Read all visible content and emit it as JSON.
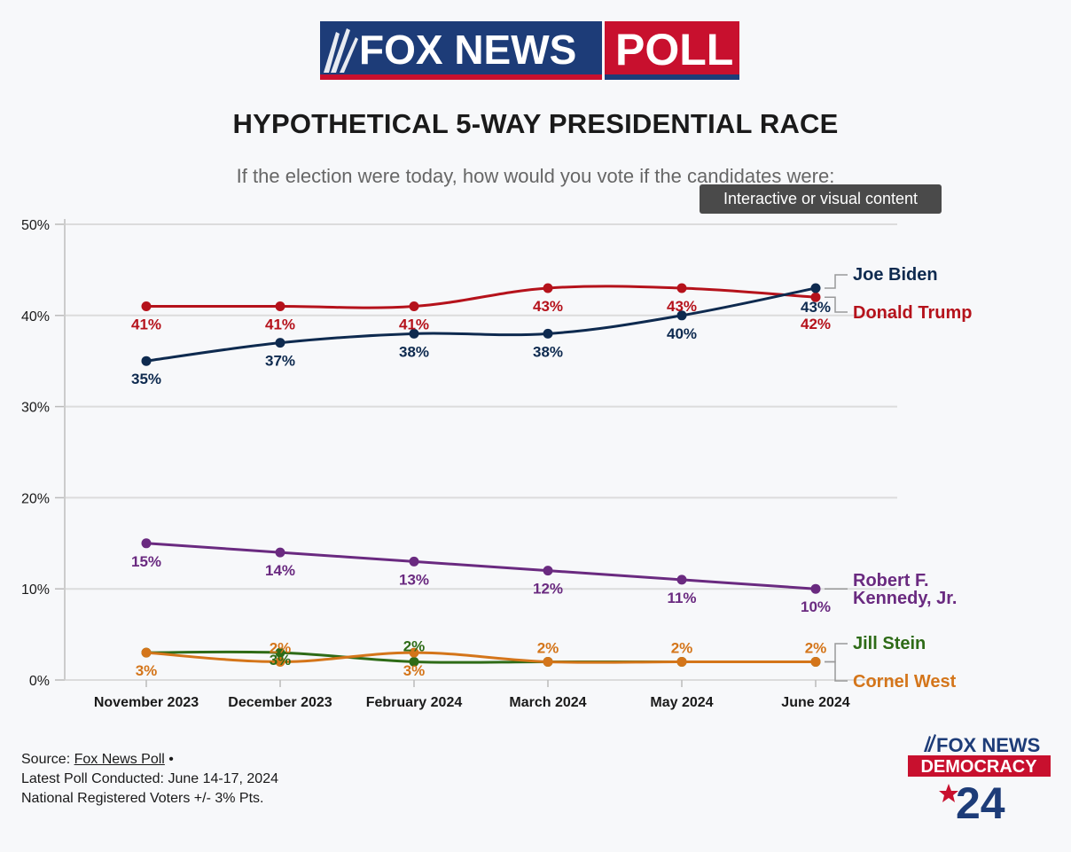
{
  "header": {
    "logo_fox_news": "FOX NEWS",
    "logo_poll": "POLL",
    "title": "HYPOTHETICAL 5-WAY PRESIDENTIAL RACE",
    "subtitle": "If the election were today, how would you vote if the candidates were:"
  },
  "tooltip": {
    "text": "Interactive or visual content"
  },
  "chart_data": {
    "type": "line",
    "categories": [
      "November 2023",
      "December 2023",
      "February 2024",
      "March 2024",
      "May 2024",
      "June 2024"
    ],
    "ylim": [
      0,
      50
    ],
    "yticks": [
      0,
      10,
      20,
      30,
      40,
      50
    ],
    "ytick_labels": [
      "0%",
      "10%",
      "20%",
      "30%",
      "40%",
      "50%"
    ],
    "grid": true,
    "legend": "right (end labels)",
    "series": [
      {
        "name": "Donald Trump",
        "color": "#b5121b",
        "values": [
          41,
          41,
          41,
          43,
          43,
          42
        ],
        "labels": [
          "41%",
          "41%",
          "41%",
          "43%",
          "43%",
          "42%"
        ]
      },
      {
        "name": "Joe Biden",
        "color": "#0e2a4f",
        "values": [
          35,
          37,
          38,
          38,
          40,
          43
        ],
        "labels": [
          "35%",
          "37%",
          "38%",
          "38%",
          "40%",
          "43%"
        ]
      },
      {
        "name": "Robert F. Kennedy, Jr.",
        "color": "#6a2a80",
        "values": [
          15,
          14,
          13,
          12,
          11,
          10
        ],
        "labels": [
          "15%",
          "14%",
          "13%",
          "12%",
          "11%",
          "10%"
        ]
      },
      {
        "name": "Jill Stein",
        "color": "#2e6b17",
        "values": [
          3,
          3,
          2,
          2,
          2,
          2
        ],
        "labels": [
          "3%",
          "3%",
          "2%",
          "2%",
          "2%",
          "2%"
        ]
      },
      {
        "name": "Cornel West",
        "color": "#d4751a",
        "values": [
          3,
          2,
          3,
          2,
          2,
          2
        ],
        "labels": [
          "3%",
          "2%",
          "3%",
          "2%",
          "2%",
          "2%"
        ]
      }
    ],
    "end_labels": {
      "biden": "Joe Biden",
      "trump": "Donald Trump",
      "rfk_line1": "Robert F.",
      "rfk_line2": "Kennedy, Jr.",
      "stein": "Jill Stein",
      "west": "Cornel West"
    }
  },
  "footer": {
    "source_label": "Source:",
    "source_link": "Fox News Poll",
    "bullet": "•",
    "latest_poll": "Latest Poll Conducted: June 14-17, 2024",
    "voters": "National Registered Voters +/- 3% Pts.",
    "badge_fox_news": "FOX NEWS",
    "badge_democracy": "DEMOCRACY",
    "badge_year": "24"
  },
  "colors": {
    "fox_blue": "#1d3c78",
    "fox_red": "#c8102e",
    "grid": "#dcdcdc"
  }
}
